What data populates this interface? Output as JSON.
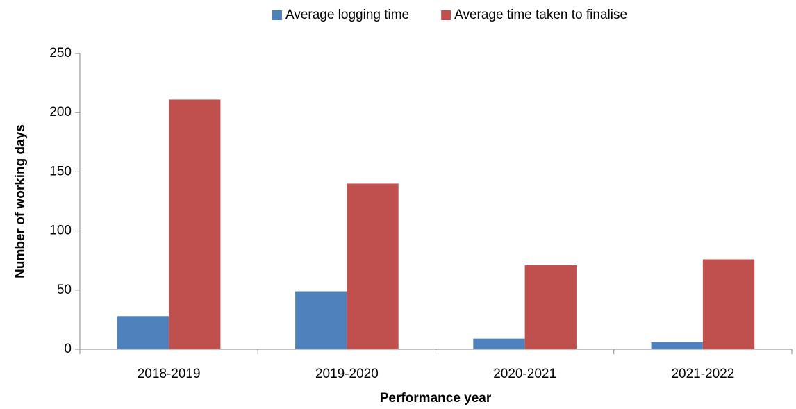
{
  "chart_data": {
    "type": "bar",
    "xlabel": "Performance year",
    "ylabel": "Number of working days",
    "categories": [
      "2018-2019",
      "2019-2020",
      "2020-2021",
      "2021-2022"
    ],
    "series": [
      {
        "name": "Average logging time",
        "color": "#4f81bd",
        "values": [
          28,
          49,
          9,
          6
        ]
      },
      {
        "name": "Average time taken to finalise",
        "color": "#c0504d",
        "values": [
          211,
          140,
          71,
          76
        ]
      }
    ],
    "ylim": [
      0,
      250
    ],
    "yticks": [
      0,
      50,
      100,
      150,
      200,
      250
    ],
    "grid": false,
    "legend": "top"
  }
}
